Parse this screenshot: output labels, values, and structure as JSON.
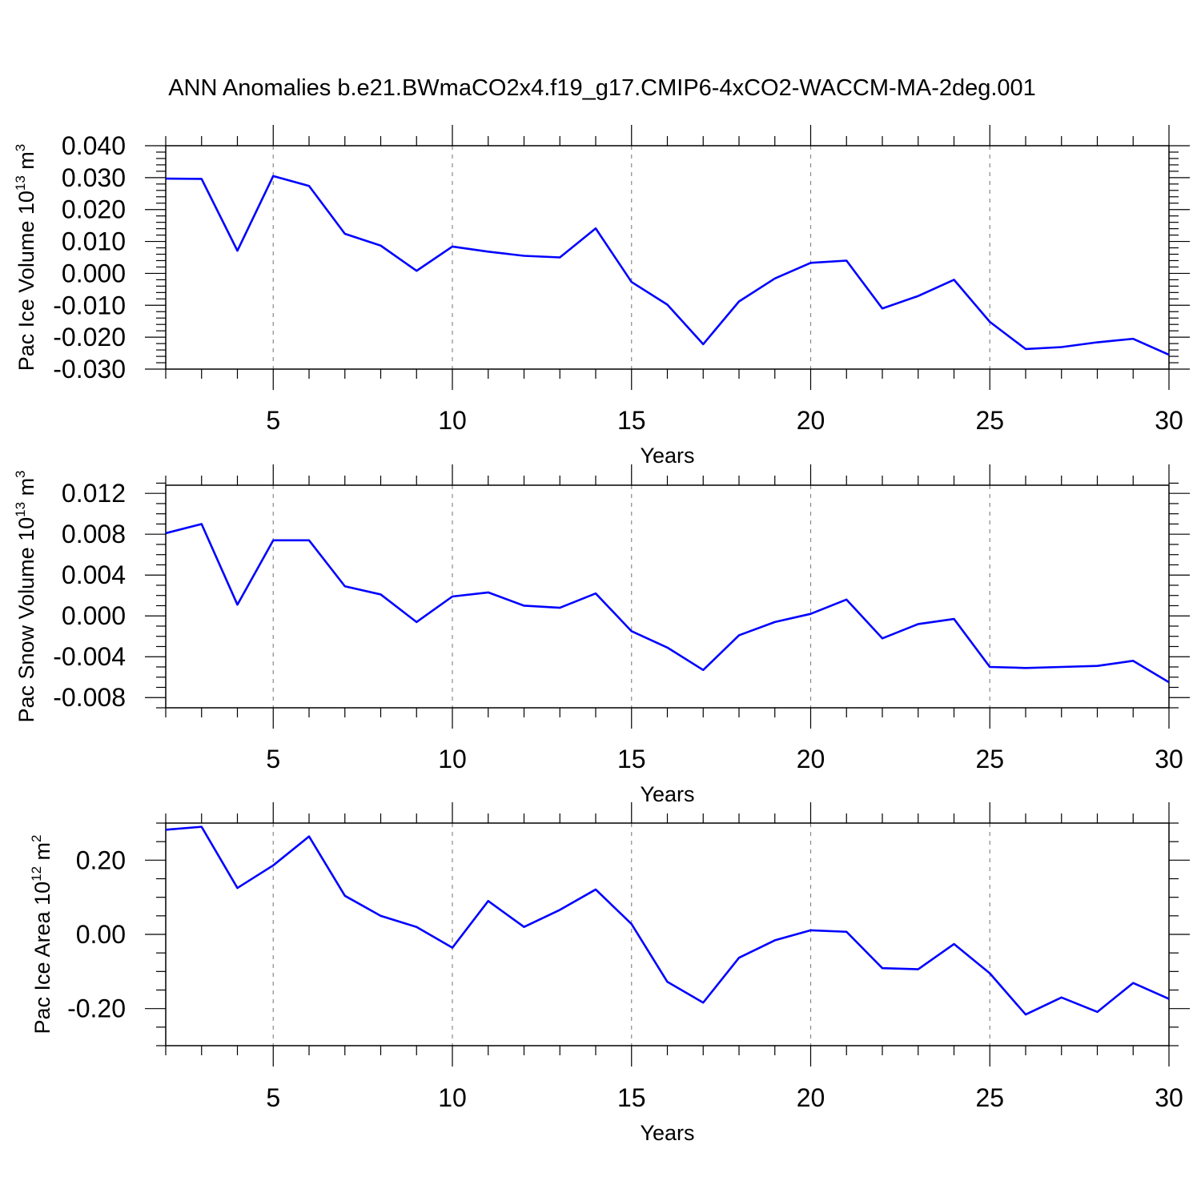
{
  "title": "ANN Anomalies b.e21.BWmaCO2x4.f19_g17.CMIP6-4xCO2-WACCM-MA-2deg.001",
  "colors": {
    "line": "#0000ff",
    "frame": "#000000",
    "grid": "#888888"
  },
  "chart_data": [
    {
      "type": "line",
      "ylabel": "Pac Ice Volume 10",
      "ylabel_exp": "13",
      "ylabel_unit": " m",
      "ylabel_unit_exp": "3",
      "xlabel": "Years",
      "xlim": [
        2,
        30
      ],
      "ylim": [
        -0.03,
        0.04
      ],
      "x_ticks": [
        5,
        10,
        15,
        20,
        25,
        30
      ],
      "x_tick_labels": [
        "5",
        "10",
        "15",
        "20",
        "25",
        "30"
      ],
      "y_ticks": [
        -0.03,
        -0.02,
        -0.01,
        0.0,
        0.01,
        0.02,
        0.03,
        0.04
      ],
      "y_tick_labels": [
        "-0.030",
        "-0.020",
        "-0.010",
        "0.000",
        "0.010",
        "0.020",
        "0.030",
        "0.040"
      ],
      "y_minor_step": 0.002,
      "x": [
        2,
        3,
        4,
        5,
        6,
        7,
        8,
        9,
        10,
        11,
        12,
        13,
        14,
        15,
        16,
        17,
        18,
        19,
        20,
        21,
        22,
        23,
        24,
        25,
        26,
        27,
        28,
        29,
        30
      ],
      "values": [
        0.0297,
        0.0296,
        0.0071,
        0.0305,
        0.0274,
        0.0124,
        0.0087,
        0.0008,
        0.0084,
        0.0068,
        0.0055,
        0.005,
        0.0141,
        -0.0027,
        -0.0098,
        -0.0222,
        -0.0088,
        -0.0016,
        0.0033,
        0.004,
        -0.011,
        -0.0071,
        -0.002,
        -0.0152,
        -0.0237,
        -0.0231,
        -0.0216,
        -0.0205,
        -0.0255
      ]
    },
    {
      "type": "line",
      "ylabel": "Pac Snow Volume 10",
      "ylabel_exp": "13",
      "ylabel_unit": " m",
      "ylabel_unit_exp": "3",
      "xlabel": "Years",
      "xlim": [
        2,
        30
      ],
      "ylim": [
        -0.009,
        0.0128
      ],
      "x_ticks": [
        5,
        10,
        15,
        20,
        25,
        30
      ],
      "x_tick_labels": [
        "5",
        "10",
        "15",
        "20",
        "25",
        "30"
      ],
      "y_ticks": [
        -0.008,
        -0.004,
        0.0,
        0.004,
        0.008,
        0.012
      ],
      "y_tick_labels": [
        "-0.008",
        "-0.004",
        "0.000",
        "0.004",
        "0.008",
        "0.012"
      ],
      "y_minor_step": 0.001,
      "x": [
        2,
        3,
        4,
        5,
        6,
        7,
        8,
        9,
        10,
        11,
        12,
        13,
        14,
        15,
        16,
        17,
        18,
        19,
        20,
        21,
        22,
        23,
        24,
        25,
        26,
        27,
        28,
        29,
        30
      ],
      "values": [
        0.0081,
        0.009,
        0.0011,
        0.0074,
        0.0074,
        0.0029,
        0.0021,
        -0.0006,
        0.0019,
        0.0023,
        0.001,
        0.0008,
        0.0022,
        -0.0015,
        -0.0031,
        -0.0053,
        -0.0019,
        -0.0006,
        0.0002,
        0.0016,
        -0.0022,
        -0.0008,
        -0.0003,
        -0.005,
        -0.0051,
        -0.005,
        -0.0049,
        -0.0044,
        -0.0065
      ]
    },
    {
      "type": "line",
      "ylabel": "Pac Ice Area 10",
      "ylabel_exp": "12",
      "ylabel_unit": " m",
      "ylabel_unit_exp": "2",
      "xlabel": "Years",
      "xlim": [
        2,
        30
      ],
      "ylim": [
        -0.3,
        0.3
      ],
      "x_ticks": [
        5,
        10,
        15,
        20,
        25,
        30
      ],
      "x_tick_labels": [
        "5",
        "10",
        "15",
        "20",
        "25",
        "30"
      ],
      "y_ticks": [
        -0.2,
        0.0,
        0.2
      ],
      "y_tick_labels": [
        "-0.20",
        "0.00",
        "0.20"
      ],
      "y_minor_step": 0.05,
      "x": [
        2,
        3,
        4,
        5,
        6,
        7,
        8,
        9,
        10,
        11,
        12,
        13,
        14,
        15,
        16,
        17,
        18,
        19,
        20,
        21,
        22,
        23,
        24,
        25,
        26,
        27,
        28,
        29,
        30
      ],
      "values": [
        0.282,
        0.29,
        0.125,
        0.186,
        0.264,
        0.104,
        0.05,
        0.02,
        -0.036,
        0.09,
        0.02,
        0.066,
        0.121,
        0.028,
        -0.128,
        -0.184,
        -0.063,
        -0.016,
        0.011,
        0.007,
        -0.091,
        -0.094,
        -0.026,
        -0.105,
        -0.216,
        -0.17,
        -0.209,
        -0.131,
        -0.174
      ]
    }
  ]
}
